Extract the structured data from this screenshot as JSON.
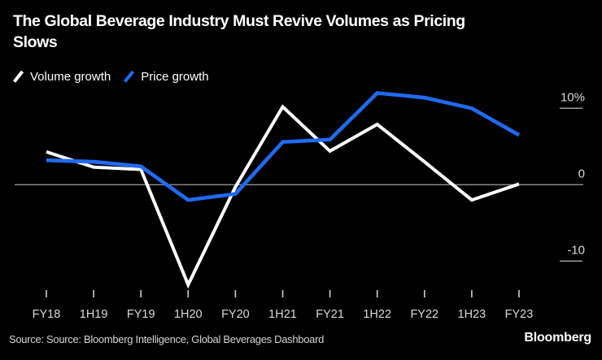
{
  "title": {
    "line1": "The Global Beverage Industry Must Revive Volumes as Pricing",
    "line2": "Slows"
  },
  "legend": {
    "items": [
      {
        "label": "Volume growth",
        "color": "#ffffff"
      },
      {
        "label": "Price growth",
        "color": "#1f6bf5"
      }
    ]
  },
  "footer": {
    "source": "Source: Source: Bloomberg Intelligence, Global Beverages Dashboard",
    "logo": "Bloomberg"
  },
  "colors": {
    "background": "#000000",
    "volume_line": "#ffffff",
    "price_line": "#1f6bf5",
    "zero_line": "#8f8f8f",
    "ytick_line": "#9a9a9a",
    "xtick_line": "#cfcfcf",
    "axis_text": "#d9d9d9",
    "title_text": "#ffffff",
    "source_text": "#d4d4d4"
  },
  "chart_data": {
    "type": "line",
    "title": "The Global Beverage Industry Must Revive Volumes as Pricing Slows",
    "xlabel": "",
    "ylabel": "",
    "categories": [
      "FY18",
      "1H19",
      "FY19",
      "1H20",
      "FY20",
      "1H21",
      "FY21",
      "1H22",
      "FY22",
      "1H23",
      "FY23"
    ],
    "series": [
      {
        "name": "Volume growth",
        "color": "#ffffff",
        "values": [
          4.3,
          2.3,
          2.0,
          -13.1,
          -0.3,
          10.2,
          4.4,
          7.9,
          3.0,
          -2.0,
          0.1
        ]
      },
      {
        "name": "Price growth",
        "color": "#1f6bf5",
        "values": [
          3.2,
          3.0,
          2.4,
          -2.0,
          -1.2,
          5.6,
          5.9,
          12.0,
          11.4,
          10.0,
          6.5
        ]
      }
    ],
    "yticks": [
      {
        "label": "10%",
        "value": 10
      },
      {
        "label": "0",
        "value": 0
      },
      {
        "label": "-10",
        "value": -10
      }
    ],
    "ylim": [
      -14.5,
      13
    ],
    "grid": "zero-line-only",
    "legend_position": "top-left",
    "unit": "percent"
  }
}
